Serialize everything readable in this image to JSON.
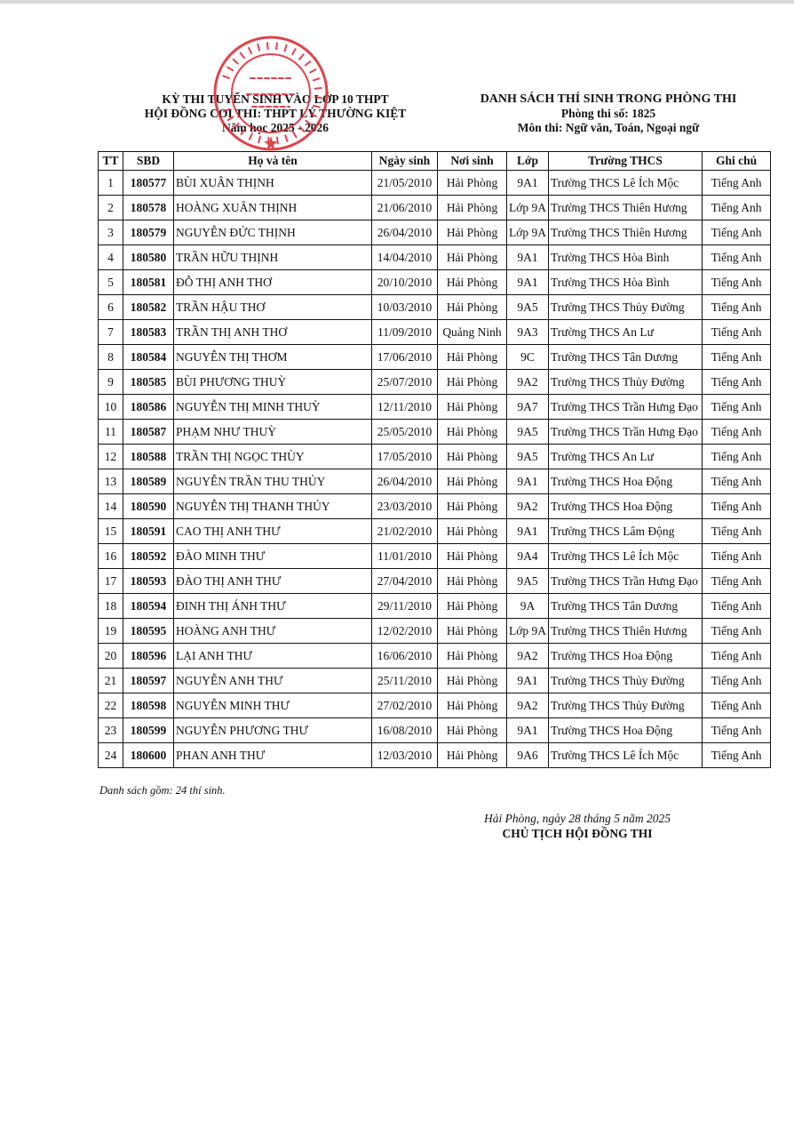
{
  "header_left": {
    "line1": "KỲ THI TUYỂN SINH VÀO LỚP 10 THPT",
    "line2": "HỘI ĐỒNG COI THI: THPT LÝ THƯỜNG KIỆT",
    "line3": "Năm học 2025 - 2026"
  },
  "header_right": {
    "title": "DANH SÁCH THÍ SINH TRONG PHÒNG THI",
    "room": "Phòng thi số: 1825",
    "subjects": "Môn thi: Ngữ văn, Toán, Ngoại ngữ"
  },
  "stamp": {
    "text_top": "SỞ GIÁO DỤC VÀ ĐÀO TẠO T.P HẢI PHÒNG",
    "text_center": "TRƯỜNG",
    "text_inner": "TRUNG HỌC PHỔ THÔNG LÝ THƯỜNG KIỆT",
    "color": "#d8252f"
  },
  "table": {
    "columns": [
      "TT",
      "SBD",
      "Họ và tên",
      "Ngày sinh",
      "Nơi sinh",
      "Lớp",
      "Trường THCS",
      "Ghi chú"
    ],
    "rows": [
      [
        "1",
        "180577",
        "BÙI XUÂN THỊNH",
        "21/05/2010",
        "Hải Phòng",
        "9A1",
        "Trường THCS Lê Ích Mộc",
        "Tiếng Anh"
      ],
      [
        "2",
        "180578",
        "HOÀNG XUÂN THỊNH",
        "21/06/2010",
        "Hải Phòng",
        "Lớp 9A",
        "Trường THCS Thiên Hương",
        "Tiếng Anh"
      ],
      [
        "3",
        "180579",
        "NGUYỄN ĐỨC THỊNH",
        "26/04/2010",
        "Hải Phòng",
        "Lớp 9A",
        "Trường THCS Thiên Hương",
        "Tiếng Anh"
      ],
      [
        "4",
        "180580",
        "TRẦN HỮU THỊNH",
        "14/04/2010",
        "Hải Phòng",
        "9A1",
        "Trường THCS Hòa Bình",
        "Tiếng Anh"
      ],
      [
        "5",
        "180581",
        "ĐỖ THỊ ANH THƠ",
        "20/10/2010",
        "Hải Phòng",
        "9A1",
        "Trường THCS Hòa Bình",
        "Tiếng Anh"
      ],
      [
        "6",
        "180582",
        "TRẦN HẬU THƠ",
        "10/03/2010",
        "Hải Phòng",
        "9A5",
        "Trường THCS Thủy Đường",
        "Tiếng Anh"
      ],
      [
        "7",
        "180583",
        "TRẦN THỊ ANH THƠ",
        "11/09/2010",
        "Quảng Ninh",
        "9A3",
        "Trường THCS An Lư",
        "Tiếng Anh"
      ],
      [
        "8",
        "180584",
        "NGUYỄN THỊ THƠM",
        "17/06/2010",
        "Hải Phòng",
        "9C",
        "Trường THCS Tân Dương",
        "Tiếng Anh"
      ],
      [
        "9",
        "180585",
        "BÙI PHƯƠNG THUỲ",
        "25/07/2010",
        "Hải Phòng",
        "9A2",
        "Trường THCS Thủy Đường",
        "Tiếng Anh"
      ],
      [
        "10",
        "180586",
        "NGUYỄN THỊ MINH THUỲ",
        "12/11/2010",
        "Hải Phòng",
        "9A7",
        "Trường THCS Trần Hưng Đạo",
        "Tiếng Anh"
      ],
      [
        "11",
        "180587",
        "PHẠM NHƯ THUỲ",
        "25/05/2010",
        "Hải Phòng",
        "9A5",
        "Trường THCS Trần Hưng Đạo",
        "Tiếng Anh"
      ],
      [
        "12",
        "180588",
        "TRẦN THỊ NGỌC THÙY",
        "17/05/2010",
        "Hải Phòng",
        "9A5",
        "Trường THCS An Lư",
        "Tiếng Anh"
      ],
      [
        "13",
        "180589",
        "NGUYỄN TRẦN THU THỦY",
        "26/04/2010",
        "Hải Phòng",
        "9A1",
        "Trường THCS Hoa Động",
        "Tiếng Anh"
      ],
      [
        "14",
        "180590",
        "NGUYỄN THỊ THANH THÚY",
        "23/03/2010",
        "Hải Phòng",
        "9A2",
        "Trường THCS Hoa Động",
        "Tiếng Anh"
      ],
      [
        "15",
        "180591",
        "CAO THỊ ANH THƯ",
        "21/02/2010",
        "Hải Phòng",
        "9A1",
        "Trường THCS Lâm Động",
        "Tiếng Anh"
      ],
      [
        "16",
        "180592",
        "ĐÀO MINH THƯ",
        "11/01/2010",
        "Hải Phòng",
        "9A4",
        "Trường THCS Lê Ích Mộc",
        "Tiếng Anh"
      ],
      [
        "17",
        "180593",
        "ĐÀO THỊ ANH THƯ",
        "27/04/2010",
        "Hải Phòng",
        "9A5",
        "Trường THCS Trần Hưng Đạo",
        "Tiếng Anh"
      ],
      [
        "18",
        "180594",
        "ĐINH THỊ ÁNH THƯ",
        "29/11/2010",
        "Hải Phòng",
        "9A",
        "Trường THCS Tân Dương",
        "Tiếng Anh"
      ],
      [
        "19",
        "180595",
        "HOÀNG ANH THƯ",
        "12/02/2010",
        "Hải Phòng",
        "Lớp 9A",
        "Trường THCS Thiên Hương",
        "Tiếng Anh"
      ],
      [
        "20",
        "180596",
        "LẠI ANH THƯ",
        "16/06/2010",
        "Hải Phòng",
        "9A2",
        "Trường THCS Hoa Động",
        "Tiếng Anh"
      ],
      [
        "21",
        "180597",
        "NGUYỄN ANH THƯ",
        "25/11/2010",
        "Hải Phòng",
        "9A1",
        "Trường THCS Thủy Đường",
        "Tiếng Anh"
      ],
      [
        "22",
        "180598",
        "NGUYỄN MINH THƯ",
        "27/02/2010",
        "Hải Phòng",
        "9A2",
        "Trường THCS Thủy Đường",
        "Tiếng Anh"
      ],
      [
        "23",
        "180599",
        "NGUYỄN PHƯƠNG THƯ",
        "16/08/2010",
        "Hải Phòng",
        "9A1",
        "Trường THCS Hoa Động",
        "Tiếng Anh"
      ],
      [
        "24",
        "180600",
        "PHAN ANH THƯ",
        "12/03/2010",
        "Hải Phòng",
        "9A6",
        "Trường THCS Lê Ích Mộc",
        "Tiếng Anh"
      ]
    ]
  },
  "footer": {
    "count_note": "Danh sách gồm: 24 thí sinh.",
    "place_date": "Hải Phòng, ngày 28 tháng 5 năm 2025",
    "signer_role": "CHỦ TỊCH HỘI ĐỒNG THI"
  }
}
